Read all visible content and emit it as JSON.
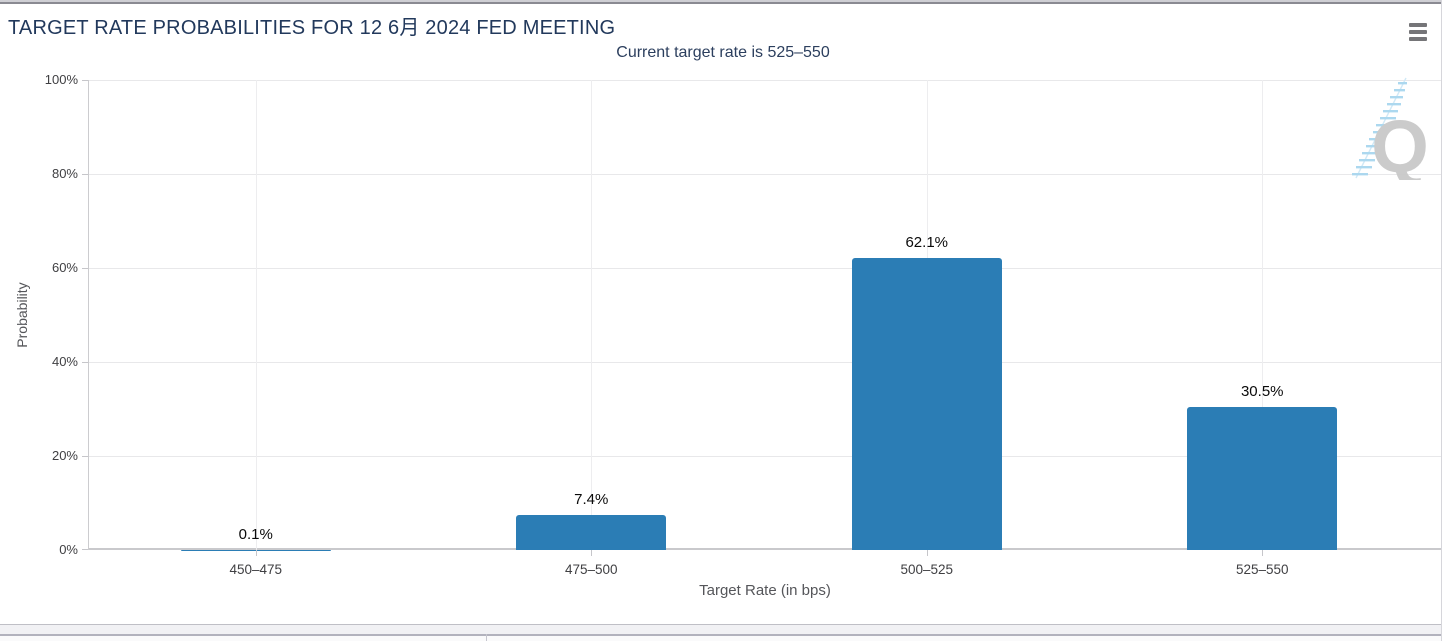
{
  "header": {
    "title": "TARGET RATE PROBABILITIES FOR 12 6月 2024 FED MEETING",
    "subtitle": "Current target rate is 525–550"
  },
  "menu": {
    "icon": "hamburger-menu-icon",
    "tooltip_label": "Chart context menu"
  },
  "watermark": {
    "letter": "Q"
  },
  "chart_data": {
    "type": "bar",
    "title": "TARGET RATE PROBABILITIES FOR 12 6月 2024 FED MEETING",
    "subtitle": "Current target rate is 525–550",
    "categories": [
      "450–475",
      "475–500",
      "500–525",
      "525–550"
    ],
    "values": [
      0.1,
      7.4,
      62.1,
      30.5
    ],
    "bar_labels": [
      "0.1%",
      "7.4%",
      "62.1%",
      "30.5%"
    ],
    "xlabel": "Target Rate (in bps)",
    "ylabel": "Probability",
    "ylim": [
      0,
      100
    ],
    "ytick_labels": [
      "0%",
      "20%",
      "40%",
      "60%",
      "80%",
      "100%"
    ],
    "grid": true,
    "legend": "none",
    "bar_color": "#2b7db5",
    "title_color": "#22395c",
    "label_color": "#0a0a0a"
  }
}
